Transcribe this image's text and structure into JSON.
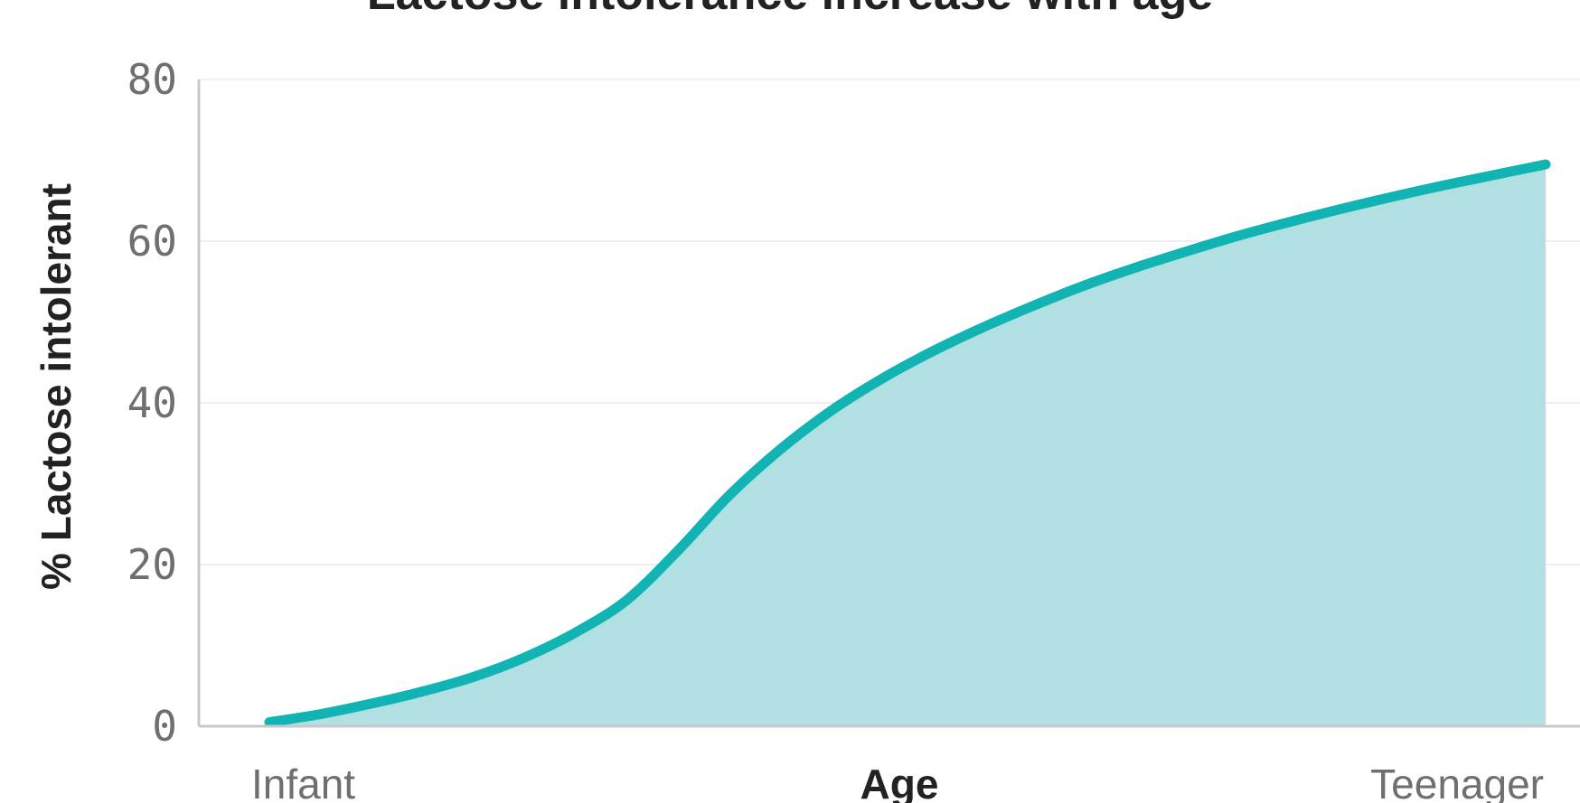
{
  "chart_data": {
    "type": "area",
    "title": "Lactose intolerance increase with age",
    "xlabel": "Age",
    "ylabel": "% Lactose intolerant",
    "x_tick_labels": [
      "Infant",
      "Teenager"
    ],
    "y_ticks": [
      0,
      20,
      40,
      60,
      80
    ],
    "ylim": [
      0,
      80
    ],
    "xlim": [
      0,
      1
    ],
    "grid": true,
    "legend": "none",
    "series": [
      {
        "x": [
          0.0,
          0.04,
          0.08,
          0.12,
          0.16,
          0.2,
          0.24,
          0.28,
          0.32,
          0.36,
          0.4,
          0.44,
          0.48,
          0.52,
          0.56,
          0.6,
          0.64,
          0.68,
          0.72,
          0.76,
          0.8,
          0.84,
          0.88,
          0.92,
          0.96,
          1.0
        ],
        "values": [
          0.5,
          1.5,
          2.8,
          4.3,
          6.1,
          8.5,
          11.6,
          15.6,
          21.7,
          28.5,
          34.2,
          39.0,
          43.0,
          46.4,
          49.4,
          52.1,
          54.6,
          56.8,
          58.8,
          60.7,
          62.4,
          64.0,
          65.5,
          66.9,
          68.2,
          69.5
        ]
      }
    ],
    "colors": {
      "line": "#12b3b3",
      "fill": "#b0e0e2",
      "axis": "#c8c8c8",
      "grid": "#efefef"
    }
  }
}
